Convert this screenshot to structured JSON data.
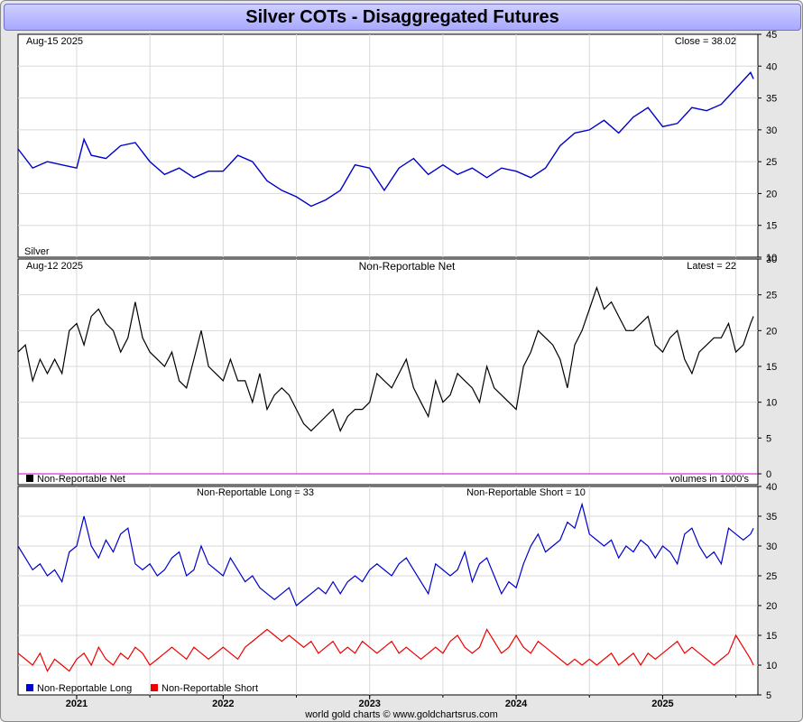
{
  "title": "Silver COTs - Disaggregated Futures",
  "footer": "world gold charts © www.goldchartsrus.com",
  "chart_data": [
    {
      "type": "line",
      "top_left": "Aug-15  2025",
      "top_right": "Close = 38.02",
      "bottom_left": "Silver",
      "ylim": [
        10,
        45
      ],
      "yticks": [
        10,
        15,
        20,
        25,
        30,
        35,
        40,
        45
      ],
      "grid": true,
      "series": [
        {
          "name": "Silver",
          "color": "#0000cc",
          "x": [
            2020.6,
            2020.7,
            2020.8,
            2020.9,
            2021.0,
            2021.05,
            2021.1,
            2021.2,
            2021.3,
            2021.4,
            2021.5,
            2021.6,
            2021.7,
            2021.8,
            2021.9,
            2022.0,
            2022.1,
            2022.2,
            2022.3,
            2022.4,
            2022.5,
            2022.6,
            2022.7,
            2022.8,
            2022.9,
            2023.0,
            2023.1,
            2023.2,
            2023.3,
            2023.4,
            2023.5,
            2023.6,
            2023.7,
            2023.8,
            2023.9,
            2024.0,
            2024.1,
            2024.2,
            2024.3,
            2024.4,
            2024.5,
            2024.6,
            2024.7,
            2024.8,
            2024.9,
            2025.0,
            2025.1,
            2025.2,
            2025.3,
            2025.4,
            2025.5,
            2025.6,
            2025.62
          ],
          "values": [
            27,
            24,
            25,
            24.5,
            24,
            28.5,
            26,
            25.5,
            27.5,
            28,
            25,
            23,
            24,
            22.5,
            23.5,
            23.5,
            26,
            25,
            22,
            20.5,
            19.5,
            18,
            19,
            20.5,
            24.5,
            24,
            20.5,
            24,
            25.5,
            23,
            24.5,
            23,
            24,
            22.5,
            24,
            23.5,
            22.5,
            24,
            27.5,
            29.5,
            30,
            31.5,
            29.5,
            32,
            33.5,
            30.5,
            31,
            33.5,
            33,
            34,
            36.5,
            39,
            38
          ]
        }
      ]
    },
    {
      "type": "line",
      "title": "Non-Reportable Net",
      "top_left": "Aug-12  2025",
      "top_right": "Latest = 22",
      "legend": "Non-Reportable Net",
      "right_note": "volumes in 1000's",
      "ylim": [
        0,
        30
      ],
      "yticks": [
        0,
        5,
        10,
        15,
        20,
        25,
        30
      ],
      "grid": true,
      "series": [
        {
          "name": "Non-Reportable Net",
          "color": "#000000",
          "x": [
            2020.6,
            2020.65,
            2020.7,
            2020.75,
            2020.8,
            2020.85,
            2020.9,
            2020.95,
            2021.0,
            2021.05,
            2021.1,
            2021.15,
            2021.2,
            2021.25,
            2021.3,
            2021.35,
            2021.4,
            2021.45,
            2021.5,
            2021.55,
            2021.6,
            2021.65,
            2021.7,
            2021.75,
            2021.8,
            2021.85,
            2021.9,
            2021.95,
            2022.0,
            2022.05,
            2022.1,
            2022.15,
            2022.2,
            2022.25,
            2022.3,
            2022.35,
            2022.4,
            2022.45,
            2022.5,
            2022.55,
            2022.6,
            2022.65,
            2022.7,
            2022.75,
            2022.8,
            2022.85,
            2022.9,
            2022.95,
            2023.0,
            2023.05,
            2023.1,
            2023.15,
            2023.2,
            2023.25,
            2023.3,
            2023.35,
            2023.4,
            2023.45,
            2023.5,
            2023.55,
            2023.6,
            2023.65,
            2023.7,
            2023.75,
            2023.8,
            2023.85,
            2023.9,
            2023.95,
            2024.0,
            2024.05,
            2024.1,
            2024.15,
            2024.2,
            2024.25,
            2024.3,
            2024.35,
            2024.4,
            2024.45,
            2024.5,
            2024.55,
            2024.6,
            2024.65,
            2024.7,
            2024.75,
            2024.8,
            2024.85,
            2024.9,
            2024.95,
            2025.0,
            2025.05,
            2025.1,
            2025.15,
            2025.2,
            2025.25,
            2025.3,
            2025.35,
            2025.4,
            2025.45,
            2025.5,
            2025.55,
            2025.6,
            2025.62
          ],
          "values": [
            17,
            18,
            13,
            16,
            14,
            16,
            14,
            20,
            21,
            18,
            22,
            23,
            21,
            20,
            17,
            19,
            24,
            19,
            17,
            16,
            15,
            17,
            13,
            12,
            16,
            20,
            15,
            14,
            13,
            16,
            13,
            13,
            10,
            14,
            9,
            11,
            12,
            11,
            9,
            7,
            6,
            7,
            8,
            9,
            6,
            8,
            9,
            9,
            10,
            14,
            13,
            12,
            14,
            16,
            12,
            10,
            8,
            13,
            10,
            11,
            14,
            13,
            12,
            10,
            15,
            12,
            11,
            10,
            9,
            15,
            17,
            20,
            19,
            18,
            16,
            12,
            18,
            20,
            23,
            26,
            23,
            24,
            22,
            20,
            20,
            21,
            22,
            18,
            17,
            19,
            20,
            16,
            14,
            17,
            18,
            19,
            19,
            21,
            17,
            18,
            21,
            22
          ]
        }
      ]
    },
    {
      "type": "line",
      "labels": [
        "Non-Reportable Long = 33",
        "Non-Reportable Short = 10"
      ],
      "ylim": [
        5,
        40
      ],
      "yticks": [
        5,
        10,
        15,
        20,
        25,
        30,
        35,
        40
      ],
      "grid": true,
      "x_ticks": [
        "2021",
        "2022",
        "2023",
        "2024",
        "2025"
      ],
      "series": [
        {
          "name": "Non-Reportable Long",
          "color": "#0000cc",
          "x": [
            2020.6,
            2020.65,
            2020.7,
            2020.75,
            2020.8,
            2020.85,
            2020.9,
            2020.95,
            2021.0,
            2021.05,
            2021.1,
            2021.15,
            2021.2,
            2021.25,
            2021.3,
            2021.35,
            2021.4,
            2021.45,
            2021.5,
            2021.55,
            2021.6,
            2021.65,
            2021.7,
            2021.75,
            2021.8,
            2021.85,
            2021.9,
            2021.95,
            2022.0,
            2022.05,
            2022.1,
            2022.15,
            2022.2,
            2022.25,
            2022.3,
            2022.35,
            2022.4,
            2022.45,
            2022.5,
            2022.55,
            2022.6,
            2022.65,
            2022.7,
            2022.75,
            2022.8,
            2022.85,
            2022.9,
            2022.95,
            2023.0,
            2023.05,
            2023.1,
            2023.15,
            2023.2,
            2023.25,
            2023.3,
            2023.35,
            2023.4,
            2023.45,
            2023.5,
            2023.55,
            2023.6,
            2023.65,
            2023.7,
            2023.75,
            2023.8,
            2023.85,
            2023.9,
            2023.95,
            2024.0,
            2024.05,
            2024.1,
            2024.15,
            2024.2,
            2024.25,
            2024.3,
            2024.35,
            2024.4,
            2024.45,
            2024.5,
            2024.55,
            2024.6,
            2024.65,
            2024.7,
            2024.75,
            2024.8,
            2024.85,
            2024.9,
            2024.95,
            2025.0,
            2025.05,
            2025.1,
            2025.15,
            2025.2,
            2025.25,
            2025.3,
            2025.35,
            2025.4,
            2025.45,
            2025.5,
            2025.55,
            2025.6,
            2025.62
          ],
          "values": [
            30,
            28,
            26,
            27,
            25,
            26,
            24,
            29,
            30,
            35,
            30,
            28,
            31,
            29,
            32,
            33,
            27,
            26,
            27,
            25,
            26,
            28,
            29,
            25,
            26,
            30,
            27,
            26,
            25,
            28,
            26,
            24,
            25,
            23,
            22,
            21,
            22,
            23,
            20,
            21,
            22,
            23,
            22,
            24,
            22,
            24,
            25,
            24,
            26,
            27,
            26,
            25,
            27,
            28,
            26,
            24,
            22,
            27,
            26,
            25,
            26,
            29,
            24,
            27,
            28,
            25,
            22,
            24,
            23,
            27,
            30,
            32,
            29,
            30,
            31,
            34,
            33,
            37,
            32,
            31,
            30,
            31,
            28,
            30,
            29,
            31,
            30,
            28,
            30,
            29,
            27,
            32,
            33,
            30,
            28,
            29,
            27,
            33,
            32,
            31,
            32,
            33
          ]
        },
        {
          "name": "Non-Reportable Short",
          "color": "#ee0000",
          "x": [
            2020.6,
            2020.65,
            2020.7,
            2020.75,
            2020.8,
            2020.85,
            2020.9,
            2020.95,
            2021.0,
            2021.05,
            2021.1,
            2021.15,
            2021.2,
            2021.25,
            2021.3,
            2021.35,
            2021.4,
            2021.45,
            2021.5,
            2021.55,
            2021.6,
            2021.65,
            2021.7,
            2021.75,
            2021.8,
            2021.85,
            2021.9,
            2021.95,
            2022.0,
            2022.05,
            2022.1,
            2022.15,
            2022.2,
            2022.25,
            2022.3,
            2022.35,
            2022.4,
            2022.45,
            2022.5,
            2022.55,
            2022.6,
            2022.65,
            2022.7,
            2022.75,
            2022.8,
            2022.85,
            2022.9,
            2022.95,
            2023.0,
            2023.05,
            2023.1,
            2023.15,
            2023.2,
            2023.25,
            2023.3,
            2023.35,
            2023.4,
            2023.45,
            2023.5,
            2023.55,
            2023.6,
            2023.65,
            2023.7,
            2023.75,
            2023.8,
            2023.85,
            2023.9,
            2023.95,
            2024.0,
            2024.05,
            2024.1,
            2024.15,
            2024.2,
            2024.25,
            2024.3,
            2024.35,
            2024.4,
            2024.45,
            2024.5,
            2024.55,
            2024.6,
            2024.65,
            2024.7,
            2024.75,
            2024.8,
            2024.85,
            2024.9,
            2024.95,
            2025.0,
            2025.05,
            2025.1,
            2025.15,
            2025.2,
            2025.25,
            2025.3,
            2025.35,
            2025.4,
            2025.45,
            2025.5,
            2025.55,
            2025.6,
            2025.62
          ],
          "values": [
            12,
            11,
            10,
            12,
            9,
            11,
            10,
            9,
            11,
            12,
            10,
            13,
            11,
            10,
            12,
            11,
            13,
            12,
            10,
            11,
            12,
            13,
            12,
            11,
            13,
            12,
            11,
            12,
            13,
            12,
            11,
            13,
            14,
            15,
            16,
            15,
            14,
            15,
            14,
            13,
            14,
            12,
            13,
            14,
            12,
            13,
            12,
            14,
            13,
            12,
            13,
            14,
            12,
            13,
            12,
            11,
            12,
            13,
            12,
            14,
            15,
            13,
            12,
            13,
            16,
            14,
            12,
            13,
            15,
            13,
            12,
            14,
            13,
            12,
            11,
            10,
            11,
            10,
            11,
            10,
            11,
            12,
            10,
            11,
            12,
            10,
            12,
            11,
            12,
            13,
            14,
            12,
            13,
            12,
            11,
            10,
            11,
            12,
            15,
            13,
            11,
            10
          ]
        }
      ]
    }
  ],
  "icons": {
    "legend_net_color": "#000000",
    "legend_long_color": "#0000cc",
    "legend_short_color": "#ee0000",
    "zero_line_color": "#cc00cc"
  }
}
